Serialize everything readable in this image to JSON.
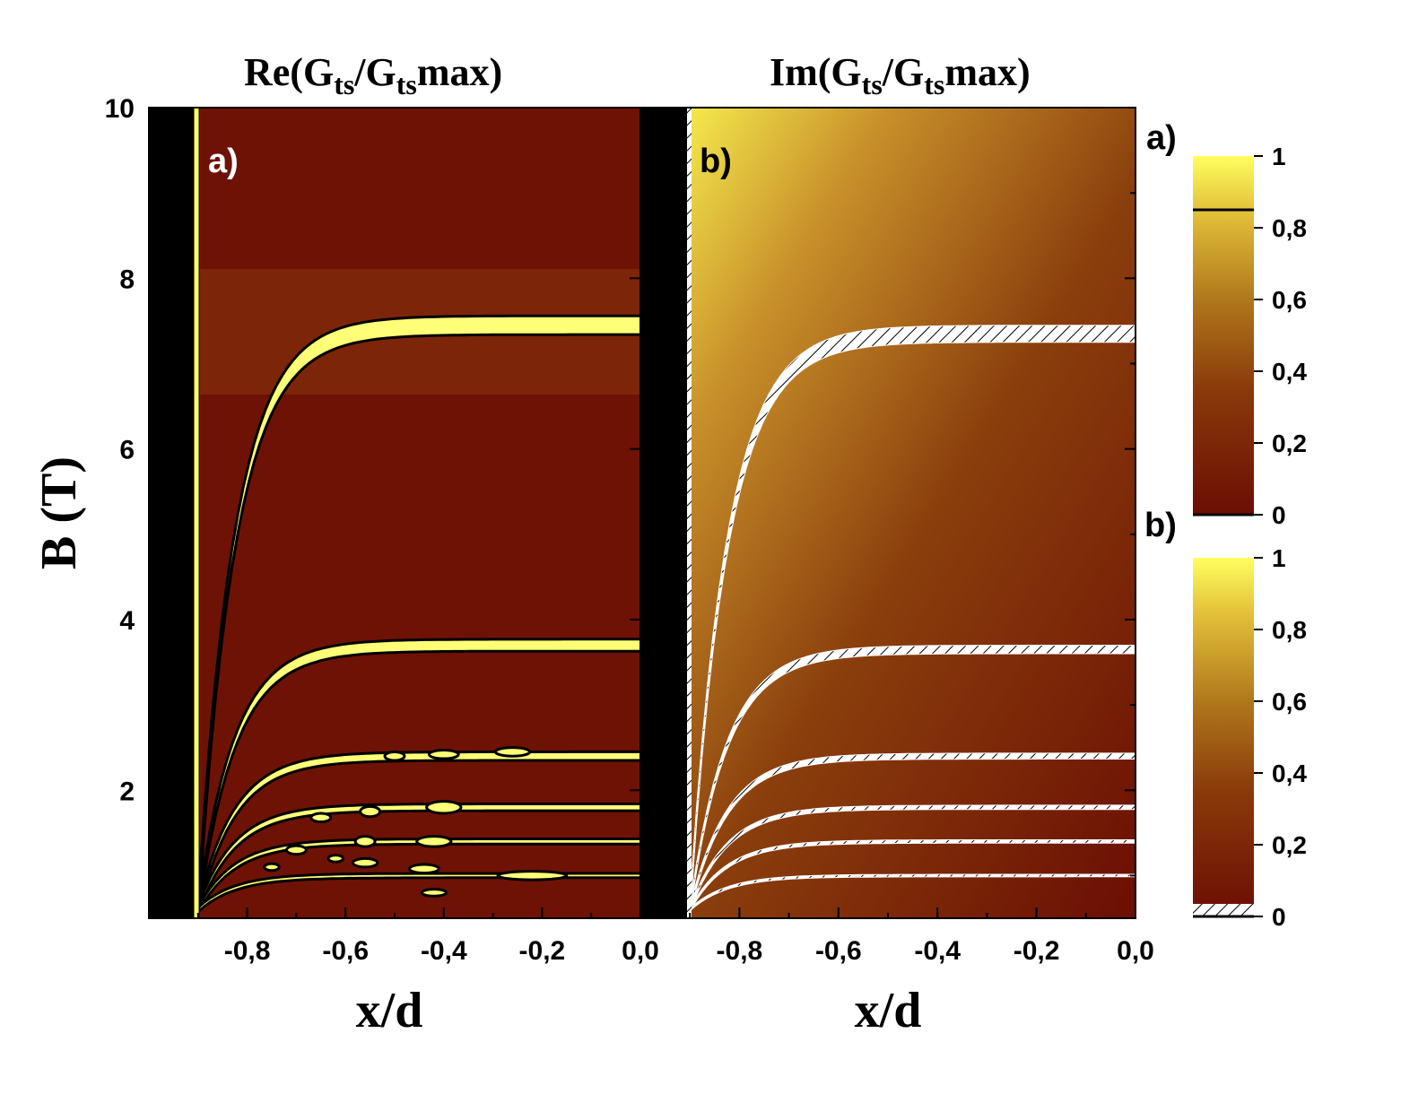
{
  "chart_data": [
    {
      "type": "heatmap",
      "title_main": "Re(G",
      "title_sub1": "ts",
      "title_mid": "/G",
      "title_sub2": "ts",
      "title_end": "max)",
      "panel_label": "a)",
      "xlabel": "x/d",
      "ylabel": "B (T)",
      "xlim": [
        -1.0,
        0.0
      ],
      "ylim": [
        0.5,
        10
      ],
      "xticks": [
        "-0,8",
        "-0,6",
        "-0,4",
        "-0,2",
        "0,0"
      ],
      "xtick_values": [
        -0.8,
        -0.6,
        -0.4,
        -0.2,
        0.0
      ],
      "yticks": [
        "2",
        "4",
        "6",
        "8",
        "10"
      ],
      "ytick_values": [
        2,
        4,
        6,
        8,
        10
      ],
      "excluded_region_x": [
        -1.0,
        -0.9
      ],
      "contour_level": 0.85,
      "bands": [
        {
          "B_asymptote": 7.45,
          "x_start": -0.9
        },
        {
          "B_asymptote": 3.7,
          "x_start": -0.9
        },
        {
          "B_asymptote": 2.4,
          "x_start": -0.9
        },
        {
          "B_asymptote": 1.8,
          "x_start": -0.9
        },
        {
          "B_asymptote": 1.4,
          "x_start": -0.9
        },
        {
          "B_asymptote": 1.0,
          "x_start": -0.9
        }
      ]
    },
    {
      "type": "heatmap",
      "title_main": "Im(G",
      "title_sub1": "ts",
      "title_mid": "/G",
      "title_sub2": "ts",
      "title_end": "max)",
      "panel_label": "b)",
      "xlabel": "x/d",
      "xlim": [
        -1.0,
        0.0
      ],
      "ylim": [
        0.5,
        10
      ],
      "xticks": [
        "-0,8",
        "-0,6",
        "-0,4",
        "-0,2",
        "0,0"
      ],
      "xtick_values": [
        -0.8,
        -0.6,
        -0.4,
        -0.2,
        0.0
      ],
      "excluded_region_x": [
        -1.0,
        -0.9
      ],
      "zero_contour_bands": [
        {
          "B_asymptote": 7.35,
          "x_start": -0.9
        },
        {
          "B_asymptote": 3.65,
          "x_start": -0.9
        },
        {
          "B_asymptote": 2.4,
          "x_start": -0.9
        },
        {
          "B_asymptote": 1.8,
          "x_start": -0.9
        },
        {
          "B_asymptote": 1.4,
          "x_start": -0.9
        },
        {
          "B_asymptote": 1.0,
          "x_start": -0.9
        }
      ]
    }
  ],
  "colorbars": [
    {
      "label": "a)",
      "ticks": [
        "1",
        "0,8",
        "0,6",
        "0,4",
        "0,2",
        "0"
      ],
      "tick_values": [
        1,
        0.8,
        0.6,
        0.4,
        0.2,
        0
      ],
      "contour_level": 0.85
    },
    {
      "label": "b)",
      "ticks": [
        "1",
        "0,8",
        "0,6",
        "0,4",
        "0,2",
        "0"
      ],
      "tick_values": [
        1,
        0.8,
        0.6,
        0.4,
        0.2,
        0
      ],
      "hatched_near_zero": true
    }
  ],
  "colors": {
    "low": "#6b0e04",
    "mid": "#9a5a10",
    "high": "#ffff55",
    "excluded": "#000000",
    "contour": "#000000",
    "hatch_bg": "#ffffff"
  }
}
